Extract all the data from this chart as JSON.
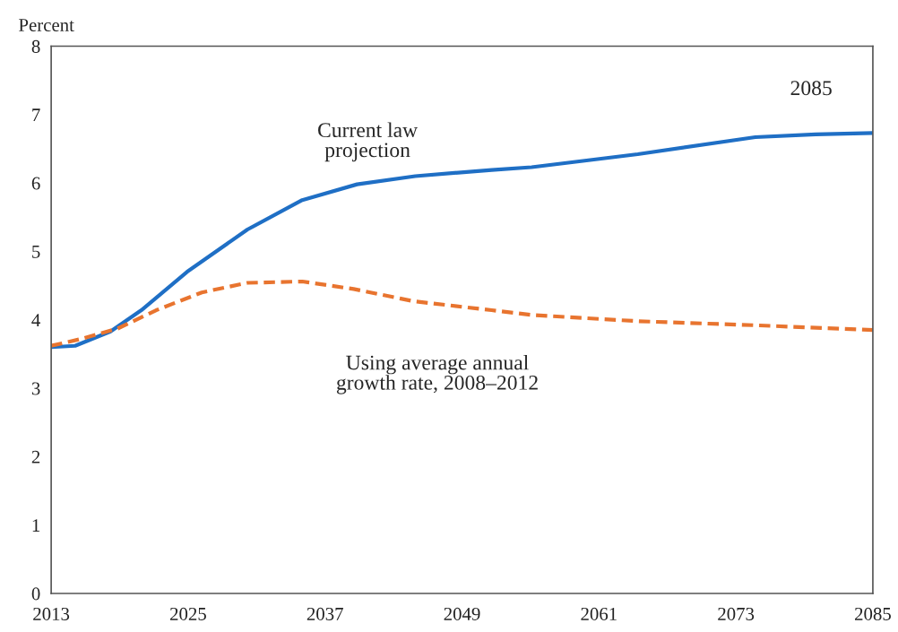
{
  "chart_data": {
    "type": "line",
    "ylabel": "Percent",
    "xlim": [
      2013,
      2085
    ],
    "ylim": [
      0,
      8
    ],
    "xticks": [
      2013,
      2025,
      2037,
      2049,
      2061,
      2073,
      2085
    ],
    "yticks": [
      0,
      1,
      2,
      3,
      4,
      5,
      6,
      7,
      8
    ],
    "grid": false,
    "legend": false,
    "annotations": [
      "Current law\nprojection",
      "Using average annual\ngrowth rate, 2008–2012",
      "2085"
    ],
    "series": [
      {
        "color": "#1f6fc5",
        "line_style": "solid",
        "x": [
          2013,
          2015.1,
          2018.2,
          2020.9,
          2024.9,
          2030.2,
          2035.0,
          2039.8,
          2044.9,
          2051.6,
          2055.1,
          2064.4,
          2074.7,
          2080.0,
          2085
        ],
        "values": [
          3.6,
          3.62,
          3.83,
          4.14,
          4.7,
          5.32,
          5.75,
          5.98,
          6.1,
          6.19,
          6.23,
          6.42,
          6.67,
          6.71,
          6.73
        ]
      },
      {
        "color": "#e8742f",
        "line_style": "dashed",
        "x": [
          2013,
          2015.6,
          2018.8,
          2022.2,
          2026.2,
          2030.2,
          2035.0,
          2039.5,
          2044.8,
          2051.6,
          2055.1,
          2064.4,
          2074.7,
          2085
        ],
        "values": [
          3.62,
          3.72,
          3.87,
          4.14,
          4.4,
          4.54,
          4.56,
          4.45,
          4.27,
          4.14,
          4.07,
          3.98,
          3.92,
          3.85
        ]
      }
    ]
  }
}
